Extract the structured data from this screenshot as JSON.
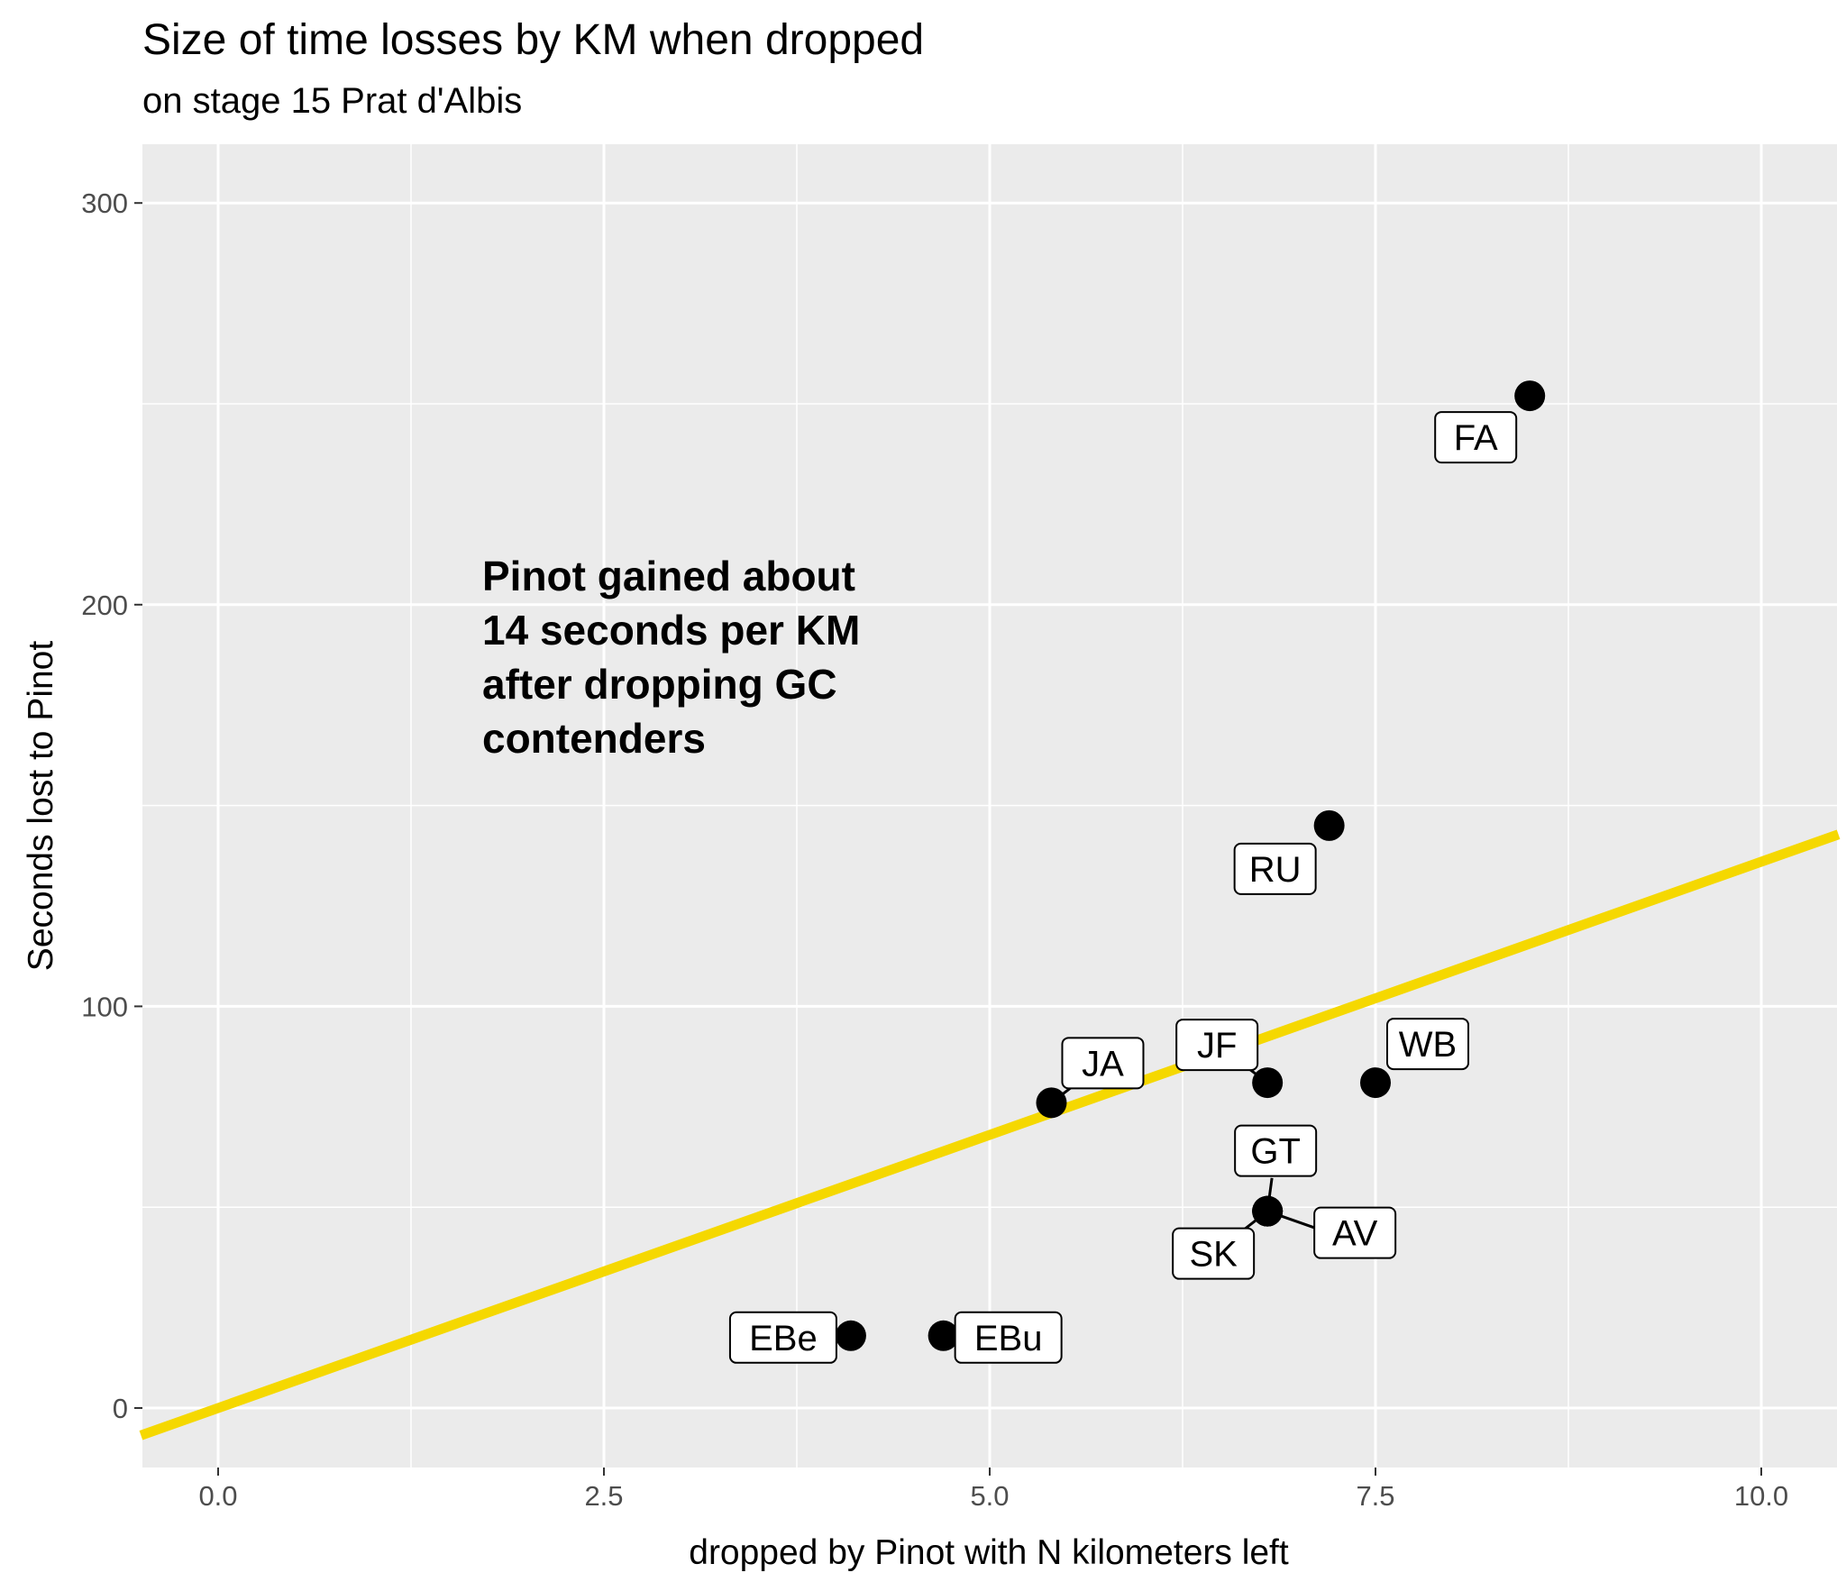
{
  "chart_data": {
    "type": "scatter",
    "title": "Size of time losses by KM when dropped",
    "subtitle": "on stage 15 Prat d'Albis",
    "xlabel": "dropped by Pinot with N kilometers left",
    "ylabel": "Seconds lost to Pinot",
    "xlim": [
      -0.5,
      10.5
    ],
    "ylim": [
      -13,
      317
    ],
    "x_ticks": [
      0,
      2.5,
      5,
      7.5,
      10
    ],
    "x_tick_labels": [
      "0.0",
      "2.5",
      "5.0",
      "7.5",
      "10.0"
    ],
    "y_ticks": [
      0,
      100,
      200,
      300
    ],
    "y_tick_labels": [
      "0",
      "100",
      "200",
      "300"
    ],
    "grid": true,
    "legend": "none",
    "series": [
      {
        "name": "riders",
        "points": [
          {
            "label": "FA",
            "x": 8.5,
            "y": 252
          },
          {
            "label": "RU",
            "x": 7.2,
            "y": 145
          },
          {
            "label": "WB",
            "x": 7.5,
            "y": 81
          },
          {
            "label": "JF",
            "x": 6.8,
            "y": 81
          },
          {
            "label": "JA",
            "x": 5.4,
            "y": 76
          },
          {
            "label": "GT",
            "x": 6.8,
            "y": 49
          },
          {
            "label": "AV",
            "x": 6.8,
            "y": 49
          },
          {
            "label": "SK",
            "x": 6.8,
            "y": 49
          },
          {
            "label": "EBe",
            "x": 4.1,
            "y": 18
          },
          {
            "label": "EBu",
            "x": 4.7,
            "y": 18
          }
        ]
      }
    ],
    "trend_line": {
      "slope": 13.6,
      "intercept": 0,
      "color": "#f5d800"
    },
    "annotation": [
      "Pinot gained about",
      "14 seconds per KM",
      "after dropping GC",
      "contenders"
    ]
  },
  "colors": {
    "panel": "#ebebeb",
    "grid": "#ffffff",
    "point": "#000000",
    "trend": "#f5d800"
  }
}
